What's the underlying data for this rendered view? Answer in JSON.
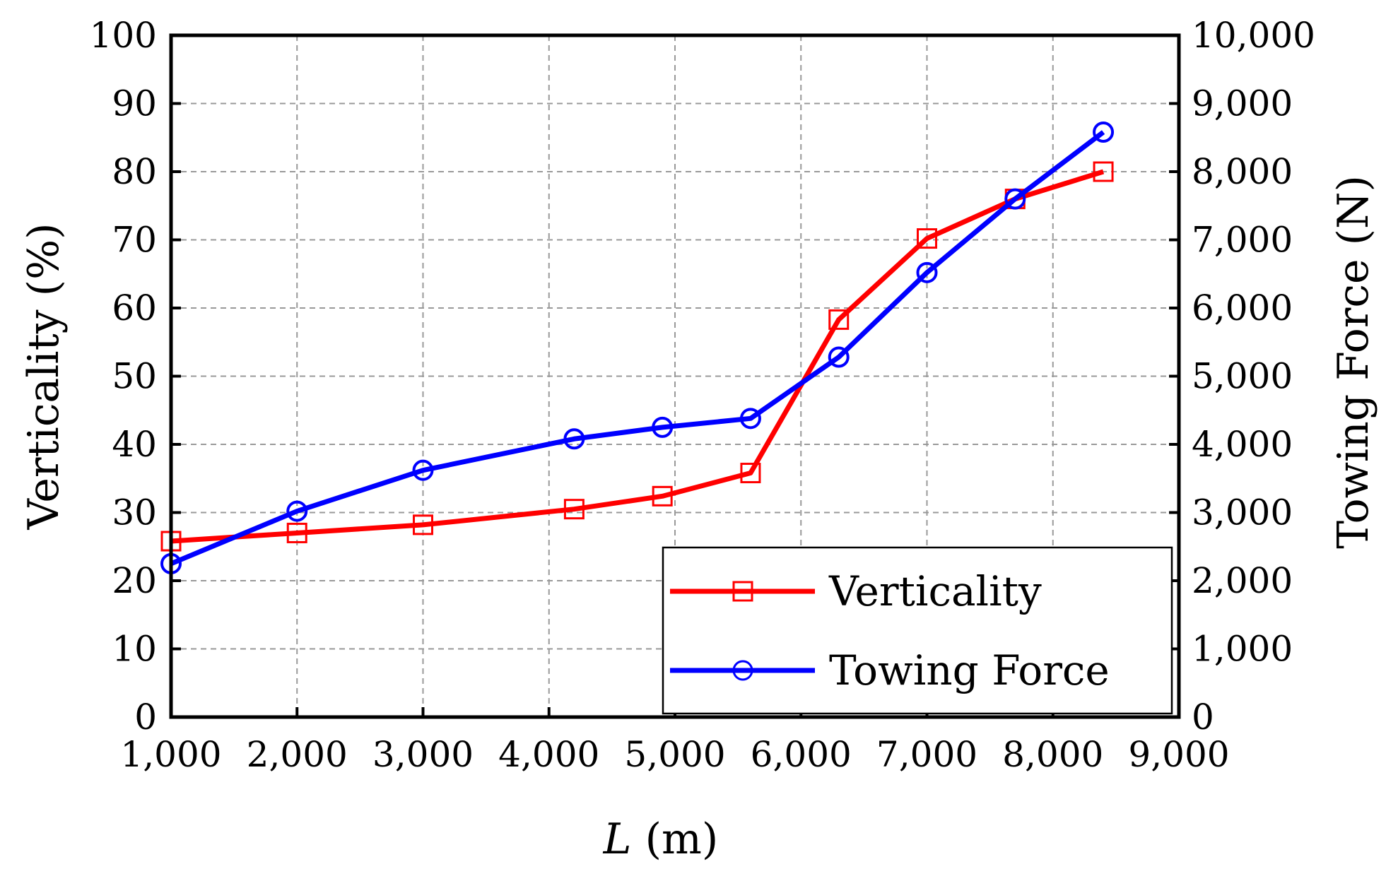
{
  "chart_data": {
    "type": "line",
    "title": "",
    "xlabel_italic": "L",
    "xlabel_rest": " (m)",
    "ylabel": "Verticality (%)",
    "y2label": "Towing Force (N)",
    "xlim": [
      1000,
      9000
    ],
    "ylim": [
      0,
      100
    ],
    "y2lim": [
      0,
      10000
    ],
    "grid": true,
    "legend_position": "bottom-right",
    "x_ticks": [
      "1,000",
      "2,000",
      "3,000",
      "4,000",
      "5,000",
      "6,000",
      "7,000",
      "8,000",
      "9,000"
    ],
    "y_ticks": [
      "0",
      "10",
      "20",
      "30",
      "40",
      "50",
      "60",
      "70",
      "80",
      "90",
      "100"
    ],
    "y2_ticks": [
      "0",
      "1,000",
      "2,000",
      "3,000",
      "4,000",
      "5,000",
      "6,000",
      "7,000",
      "8,000",
      "9,000",
      "10,000"
    ],
    "series": [
      {
        "name": "Verticality",
        "axis": "left",
        "color": "#ff0000",
        "marker": "square",
        "x": [
          1000,
          2000,
          3000,
          4200,
          4900,
          5600,
          6300,
          7000,
          7700,
          8400
        ],
        "y": [
          25.8,
          27.0,
          28.2,
          30.5,
          32.4,
          35.8,
          58.3,
          70.2,
          76.0,
          80.0
        ]
      },
      {
        "name": "Towing Force",
        "axis": "right",
        "color": "#0000ff",
        "marker": "circle",
        "x": [
          1000,
          2000,
          3000,
          4200,
          4900,
          5600,
          6300,
          7000,
          7700,
          8400
        ],
        "y": [
          2250,
          3020,
          3620,
          4080,
          4250,
          4380,
          5280,
          6520,
          7600,
          8580
        ]
      }
    ]
  }
}
